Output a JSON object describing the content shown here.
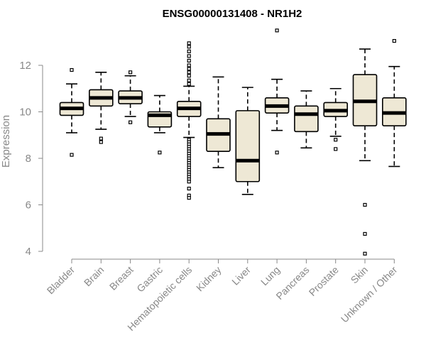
{
  "chart_data": {
    "type": "boxplot",
    "title": "ENSG00000131408 - NR1H2",
    "xlabel": "",
    "ylabel": "Expression",
    "ylim": [
      3.5,
      13.9
    ],
    "yticks": [
      4,
      6,
      8,
      10,
      12
    ],
    "grid": false,
    "box_fill": "#EEE8D5",
    "median_color": "#000000",
    "axis_color": "#888888",
    "categories": [
      "Bladder",
      "Brain",
      "Breast",
      "Gastric",
      "Hematopoietic cells",
      "Kidney",
      "Liver",
      "Lung",
      "Pancreas",
      "Prostate",
      "Skin",
      "Unknown / Other"
    ],
    "boxes": [
      {
        "whisker_low": 9.1,
        "q1": 9.85,
        "median": 10.15,
        "q3": 10.4,
        "whisker_high": 11.2,
        "outliers": [
          11.8,
          8.15
        ]
      },
      {
        "whisker_low": 9.25,
        "q1": 10.25,
        "median": 10.6,
        "q3": 10.95,
        "whisker_high": 11.7,
        "outliers": [
          8.85,
          8.7
        ]
      },
      {
        "whisker_low": 9.8,
        "q1": 10.35,
        "median": 10.6,
        "q3": 10.9,
        "whisker_high": 11.55,
        "outliers": [
          11.7,
          9.55
        ]
      },
      {
        "whisker_low": 9.1,
        "q1": 9.35,
        "median": 9.85,
        "q3": 10.0,
        "whisker_high": 10.7,
        "outliers": [
          8.25
        ]
      },
      {
        "whisker_low": 8.9,
        "q1": 9.8,
        "median": 10.15,
        "q3": 10.45,
        "whisker_high": 11.1,
        "outliers": [
          12.95,
          12.8,
          12.6,
          12.4,
          12.2,
          12.0,
          11.85,
          11.7,
          11.55,
          11.35,
          11.2,
          8.8,
          8.7,
          8.6,
          8.5,
          8.4,
          8.3,
          8.2,
          8.1,
          8.0,
          7.9,
          7.8,
          7.7,
          7.6,
          7.5,
          7.4,
          7.3,
          7.2,
          7.1,
          7.0,
          6.7,
          6.4,
          6.3
        ]
      },
      {
        "whisker_low": 7.6,
        "q1": 8.3,
        "median": 9.05,
        "q3": 9.7,
        "whisker_high": 11.5,
        "outliers": []
      },
      {
        "whisker_low": 6.45,
        "q1": 7.0,
        "median": 7.9,
        "q3": 10.05,
        "whisker_high": 11.05,
        "outliers": []
      },
      {
        "whisker_low": 9.2,
        "q1": 9.95,
        "median": 10.25,
        "q3": 10.6,
        "whisker_high": 11.4,
        "outliers": [
          13.5,
          8.25
        ]
      },
      {
        "whisker_low": 8.45,
        "q1": 9.15,
        "median": 9.9,
        "q3": 10.25,
        "whisker_high": 10.9,
        "outliers": []
      },
      {
        "whisker_low": 8.95,
        "q1": 9.8,
        "median": 10.05,
        "q3": 10.4,
        "whisker_high": 11.0,
        "outliers": [
          8.8,
          8.4
        ]
      },
      {
        "whisker_low": 7.9,
        "q1": 9.4,
        "median": 10.45,
        "q3": 11.6,
        "whisker_high": 12.7,
        "outliers": [
          6.0,
          4.75,
          3.9
        ]
      },
      {
        "whisker_low": 7.65,
        "q1": 9.4,
        "median": 9.95,
        "q3": 10.6,
        "whisker_high": 11.95,
        "outliers": [
          13.05
        ]
      }
    ]
  }
}
